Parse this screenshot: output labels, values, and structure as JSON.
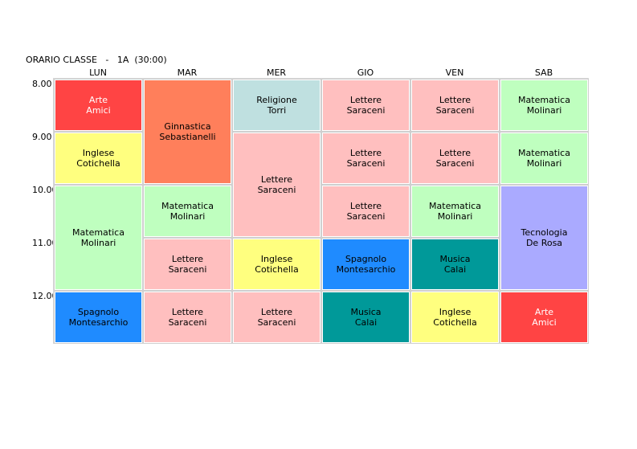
{
  "title": "ORARIO CLASSE   -   1A  (30:00)",
  "days": [
    "LUN",
    "MAR",
    "MER",
    "GIO",
    "VEN",
    "SAB"
  ],
  "times": [
    "8.00",
    "9.00",
    "10.00",
    "11.00",
    "12.00"
  ],
  "colors": {
    "red": "#ff4444",
    "orange": "#ff7f5b",
    "light_blue": "#bfe0e0",
    "pink": "#ffbfbf",
    "light_green": "#bfffbf",
    "yellow": "#ffff7f",
    "blue": "#1f8bff",
    "teal": "#009999",
    "lavender": "#aaaaff"
  },
  "lessons": [
    {
      "day": 0,
      "start": 0,
      "span": 1,
      "subject": "Arte",
      "teacher": "Amici",
      "color": "#ff4444",
      "text_color": "#ffffff"
    },
    {
      "day": 0,
      "start": 1,
      "span": 1,
      "subject": "Inglese",
      "teacher": "Cotichella",
      "color": "#ffff7f",
      "text_color": "#000000"
    },
    {
      "day": 0,
      "start": 2,
      "span": 2,
      "subject": "Matematica",
      "teacher": "Molinari",
      "color": "#bfffbf",
      "text_color": "#000000"
    },
    {
      "day": 0,
      "start": 4,
      "span": 1,
      "subject": "Spagnolo",
      "teacher": "Montesarchio",
      "color": "#1f8bff",
      "text_color": "#000000"
    },
    {
      "day": 1,
      "start": 0,
      "span": 2,
      "subject": "Ginnastica",
      "teacher": "Sebastianelli",
      "color": "#ff7f5b",
      "text_color": "#000000"
    },
    {
      "day": 1,
      "start": 2,
      "span": 1,
      "subject": "Matematica",
      "teacher": "Molinari",
      "color": "#bfffbf",
      "text_color": "#000000"
    },
    {
      "day": 1,
      "start": 3,
      "span": 1,
      "subject": "Lettere",
      "teacher": "Saraceni",
      "color": "#ffbfbf",
      "text_color": "#000000"
    },
    {
      "day": 1,
      "start": 4,
      "span": 1,
      "subject": "Lettere",
      "teacher": "Saraceni",
      "color": "#ffbfbf",
      "text_color": "#000000"
    },
    {
      "day": 2,
      "start": 0,
      "span": 1,
      "subject": "Religione",
      "teacher": "Torri",
      "color": "#bfe0e0",
      "text_color": "#000000"
    },
    {
      "day": 2,
      "start": 1,
      "span": 2,
      "subject": "Lettere",
      "teacher": "Saraceni",
      "color": "#ffbfbf",
      "text_color": "#000000"
    },
    {
      "day": 2,
      "start": 3,
      "span": 1,
      "subject": "Inglese",
      "teacher": "Cotichella",
      "color": "#ffff7f",
      "text_color": "#000000"
    },
    {
      "day": 2,
      "start": 4,
      "span": 1,
      "subject": "Lettere",
      "teacher": "Saraceni",
      "color": "#ffbfbf",
      "text_color": "#000000"
    },
    {
      "day": 3,
      "start": 0,
      "span": 1,
      "subject": "Lettere",
      "teacher": "Saraceni",
      "color": "#ffbfbf",
      "text_color": "#000000"
    },
    {
      "day": 3,
      "start": 1,
      "span": 1,
      "subject": "Lettere",
      "teacher": "Saraceni",
      "color": "#ffbfbf",
      "text_color": "#000000"
    },
    {
      "day": 3,
      "start": 2,
      "span": 1,
      "subject": "Lettere",
      "teacher": "Saraceni",
      "color": "#ffbfbf",
      "text_color": "#000000"
    },
    {
      "day": 3,
      "start": 3,
      "span": 1,
      "subject": "Spagnolo",
      "teacher": "Montesarchio",
      "color": "#1f8bff",
      "text_color": "#000000"
    },
    {
      "day": 3,
      "start": 4,
      "span": 1,
      "subject": "Musica",
      "teacher": "Calai",
      "color": "#009999",
      "text_color": "#000000"
    },
    {
      "day": 4,
      "start": 0,
      "span": 1,
      "subject": "Lettere",
      "teacher": "Saraceni",
      "color": "#ffbfbf",
      "text_color": "#000000"
    },
    {
      "day": 4,
      "start": 1,
      "span": 1,
      "subject": "Lettere",
      "teacher": "Saraceni",
      "color": "#ffbfbf",
      "text_color": "#000000"
    },
    {
      "day": 4,
      "start": 2,
      "span": 1,
      "subject": "Matematica",
      "teacher": "Molinari",
      "color": "#bfffbf",
      "text_color": "#000000"
    },
    {
      "day": 4,
      "start": 3,
      "span": 1,
      "subject": "Musica",
      "teacher": "Calai",
      "color": "#009999",
      "text_color": "#000000"
    },
    {
      "day": 4,
      "start": 4,
      "span": 1,
      "subject": "Inglese",
      "teacher": "Cotichella",
      "color": "#ffff7f",
      "text_color": "#000000"
    },
    {
      "day": 5,
      "start": 0,
      "span": 1,
      "subject": "Matematica",
      "teacher": "Molinari",
      "color": "#bfffbf",
      "text_color": "#000000"
    },
    {
      "day": 5,
      "start": 1,
      "span": 1,
      "subject": "Matematica",
      "teacher": "Molinari",
      "color": "#bfffbf",
      "text_color": "#000000"
    },
    {
      "day": 5,
      "start": 2,
      "span": 2,
      "subject": "Tecnologia",
      "teacher": "De Rosa",
      "color": "#aaaaff",
      "text_color": "#000000"
    },
    {
      "day": 5,
      "start": 4,
      "span": 1,
      "subject": "Arte",
      "teacher": "Amici",
      "color": "#ff4444",
      "text_color": "#ffffff"
    }
  ]
}
